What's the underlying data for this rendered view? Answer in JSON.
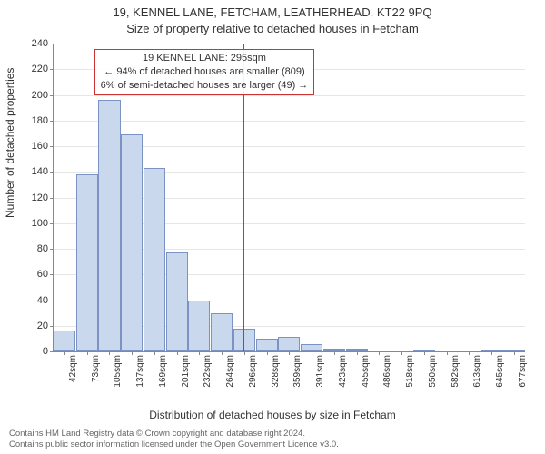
{
  "title_line1": "19, KENNEL LANE, FETCHAM, LEATHERHEAD, KT22 9PQ",
  "title_line2": "Size of property relative to detached houses in Fetcham",
  "ylabel": "Number of detached properties",
  "xlabel": "Distribution of detached houses by size in Fetcham",
  "footer_line1": "Contains HM Land Registry data © Crown copyright and database right 2024.",
  "footer_line2": "Contains public sector information licensed under the Open Government Licence v3.0.",
  "chart": {
    "type": "histogram",
    "bar_fill": "#c9d8ed",
    "bar_stroke": "#7a93c2",
    "grid_color": "#e6e6e6",
    "axis_color": "#888888",
    "background": "#ffffff",
    "ref_color": "#cc3333",
    "ref_value_x": 295,
    "xlim": [
      26,
      693
    ],
    "ylim": [
      0,
      240
    ],
    "ytick_step": 20,
    "xticks": [
      42,
      73,
      105,
      137,
      169,
      201,
      232,
      264,
      296,
      328,
      359,
      391,
      423,
      455,
      486,
      518,
      550,
      582,
      613,
      645,
      677
    ],
    "xtick_labels": [
      "42sqm",
      "73sqm",
      "105sqm",
      "137sqm",
      "169sqm",
      "201sqm",
      "232sqm",
      "264sqm",
      "296sqm",
      "328sqm",
      "359sqm",
      "391sqm",
      "423sqm",
      "455sqm",
      "486sqm",
      "518sqm",
      "550sqm",
      "582sqm",
      "613sqm",
      "645sqm",
      "677sqm"
    ],
    "bars": [
      {
        "center": 42,
        "value": 16
      },
      {
        "center": 73,
        "value": 138
      },
      {
        "center": 105,
        "value": 196
      },
      {
        "center": 137,
        "value": 169
      },
      {
        "center": 169,
        "value": 143
      },
      {
        "center": 201,
        "value": 77
      },
      {
        "center": 232,
        "value": 40
      },
      {
        "center": 264,
        "value": 30
      },
      {
        "center": 296,
        "value": 18
      },
      {
        "center": 328,
        "value": 10
      },
      {
        "center": 359,
        "value": 11
      },
      {
        "center": 391,
        "value": 6
      },
      {
        "center": 423,
        "value": 2
      },
      {
        "center": 455,
        "value": 2
      },
      {
        "center": 486,
        "value": 0
      },
      {
        "center": 518,
        "value": 0
      },
      {
        "center": 550,
        "value": 1
      },
      {
        "center": 582,
        "value": 0
      },
      {
        "center": 613,
        "value": 0
      },
      {
        "center": 645,
        "value": 1
      },
      {
        "center": 677,
        "value": 1
      }
    ],
    "bar_width_data": 31,
    "annotation": {
      "line1": "19 KENNEL LANE: 295sqm",
      "line2": "← 94% of detached houses are smaller (809)",
      "line3": "6% of semi-detached houses are larger (49) →"
    }
  }
}
